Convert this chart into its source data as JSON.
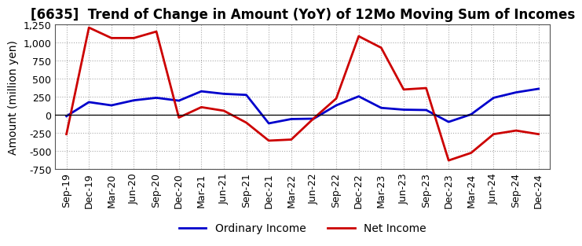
{
  "title": "[6635]  Trend of Change in Amount (YoY) of 12Mo Moving Sum of Incomes",
  "ylabel": "Amount (million yen)",
  "xlabels": [
    "Sep-19",
    "Dec-19",
    "Mar-20",
    "Jun-20",
    "Sep-20",
    "Dec-20",
    "Mar-21",
    "Jun-21",
    "Sep-21",
    "Dec-21",
    "Mar-22",
    "Jun-22",
    "Sep-22",
    "Dec-22",
    "Mar-23",
    "Jun-23",
    "Sep-23",
    "Dec-23",
    "Mar-24",
    "Jun-24",
    "Sep-24",
    "Dec-24"
  ],
  "ordinary_income": [
    -20,
    175,
    130,
    200,
    235,
    195,
    325,
    290,
    275,
    -120,
    -60,
    -55,
    130,
    255,
    95,
    70,
    65,
    -100,
    5,
    235,
    310,
    360
  ],
  "net_income": [
    -270,
    1210,
    1065,
    1065,
    1155,
    -40,
    105,
    55,
    -110,
    -360,
    -345,
    -50,
    225,
    1090,
    930,
    350,
    370,
    -635,
    -530,
    -270,
    -220,
    -270
  ],
  "ordinary_color": "#0000cc",
  "net_color": "#cc0000",
  "ylim": [
    -750,
    1250
  ],
  "yticks": [
    -750,
    -500,
    -250,
    0,
    250,
    500,
    750,
    1000,
    1250
  ],
  "legend_ordinary": "Ordinary Income",
  "legend_net": "Net Income",
  "bg_color": "#ffffff",
  "plot_bg_color": "#ffffff",
  "grid_color": "#aaaaaa",
  "line_width": 2.0,
  "title_fontsize": 12,
  "axis_label_fontsize": 10,
  "tick_fontsize": 9
}
